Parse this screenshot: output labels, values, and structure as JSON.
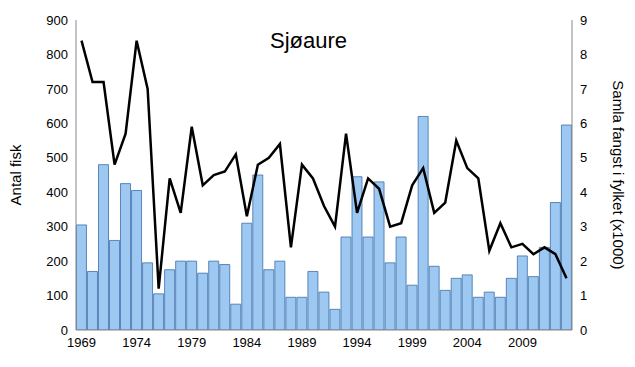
{
  "chart_data": {
    "type": "bar",
    "title": "Sjøaure",
    "y_label": "Antal fisk",
    "y2_label": "Samla fangst i fylket (x1000)",
    "categories": [
      "1969",
      null,
      null,
      null,
      null,
      "1974",
      null,
      null,
      null,
      null,
      "1979",
      null,
      null,
      null,
      null,
      "1984",
      null,
      null,
      null,
      null,
      "1989",
      null,
      null,
      null,
      null,
      "1994",
      null,
      null,
      null,
      null,
      "1999",
      null,
      null,
      null,
      null,
      "2004",
      null,
      null,
      null,
      null,
      "2009",
      null,
      null,
      null,
      null
    ],
    "series": [
      {
        "type": "bar",
        "color": "#9cc8f2",
        "values": [
          305,
          170,
          480,
          260,
          425,
          405,
          195,
          105,
          175,
          200,
          200,
          165,
          200,
          190,
          75,
          310,
          450,
          175,
          200,
          95,
          95,
          170,
          110,
          60,
          270,
          445,
          270,
          430,
          195,
          270,
          130,
          620,
          185,
          115,
          150,
          160,
          95,
          110,
          95,
          150,
          215,
          155,
          240,
          370,
          595
        ]
      },
      {
        "type": "line",
        "axis": "y2",
        "color": "#000000",
        "values": [
          8.4,
          7.2,
          7.2,
          4.8,
          5.7,
          8.4,
          7.0,
          1.2,
          4.4,
          3.4,
          5.9,
          4.2,
          4.5,
          4.6,
          5.1,
          3.3,
          4.8,
          5.0,
          5.4,
          2.4,
          4.8,
          4.4,
          3.6,
          3.0,
          5.7,
          3.4,
          4.4,
          4.1,
          3.0,
          3.1,
          4.2,
          4.7,
          3.4,
          3.7,
          5.5,
          4.7,
          4.4,
          2.3,
          3.1,
          2.4,
          2.5,
          2.2,
          2.4,
          2.2,
          1.5
        ]
      }
    ],
    "ylim": [
      0,
      900
    ],
    "yticks": [
      0,
      100,
      200,
      300,
      400,
      500,
      600,
      700,
      800,
      900
    ],
    "y2lim": [
      0,
      9
    ],
    "y2ticks": [
      0,
      1,
      2,
      3,
      4,
      5,
      6,
      7,
      8,
      9
    ]
  }
}
